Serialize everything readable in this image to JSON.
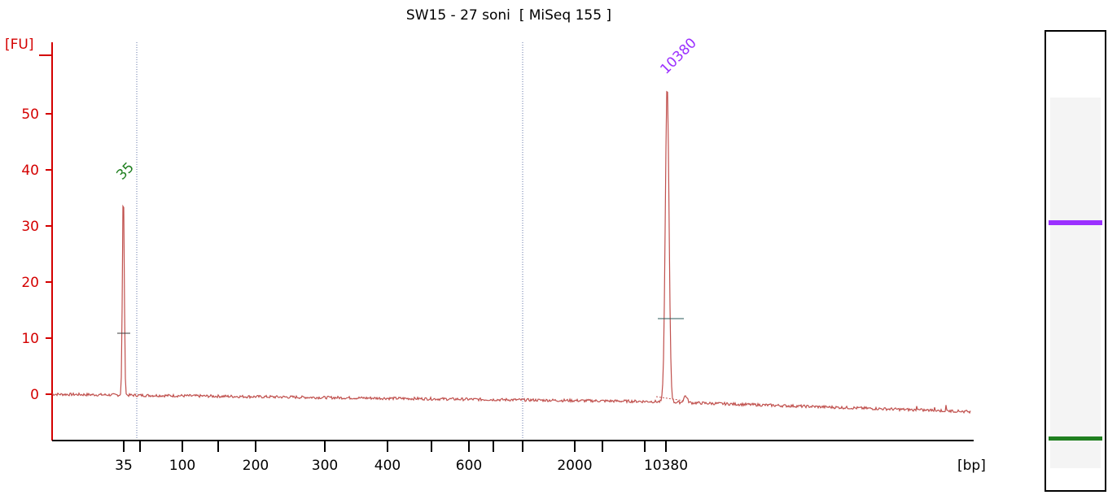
{
  "chart_data": {
    "type": "line",
    "title": "SW15 - 27 soni  [ MiSeq 155 ]",
    "ylabel": "[FU]",
    "xlabel": "[bp]",
    "ylim": [
      -8,
      60
    ],
    "yticks": [
      0,
      10,
      20,
      30,
      40,
      50
    ],
    "xticks": [
      "35",
      "100",
      "200",
      "300",
      "400",
      "600",
      "2000",
      "10380"
    ],
    "grid": false,
    "colors": {
      "trace": "#c0504d",
      "axis": "#d40000",
      "marker_35": "#1f7f1f",
      "marker_10380": "#9b30ff"
    },
    "peaks": [
      {
        "label": "35",
        "size_bp": 35,
        "height_fu": 37,
        "color": "#1f7f1f"
      },
      {
        "label": "10380",
        "size_bp": 10380,
        "height_fu": 56.5,
        "color": "#9b30ff"
      }
    ],
    "gel_bands": [
      {
        "label": "10380",
        "color": "#9b30ff"
      },
      {
        "label": "35",
        "color": "#1f7f1f"
      }
    ]
  }
}
